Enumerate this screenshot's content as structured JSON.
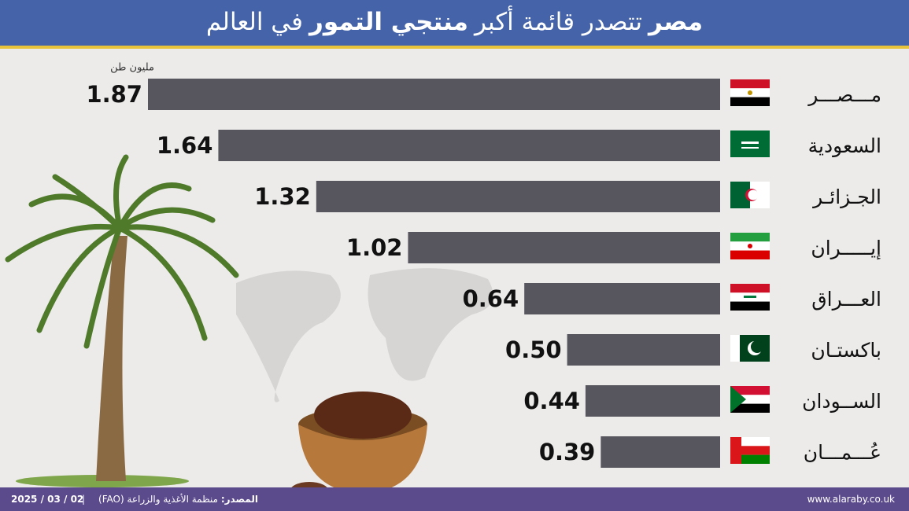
{
  "chart_data": {
    "type": "bar",
    "orientation": "horizontal",
    "title": [
      "مصر",
      "تتصدر قائمة أكبر",
      "منتجي التمور",
      "في العالم"
    ],
    "unit_label": "مليون طن",
    "categories": [
      "مـــصـــر",
      "السعودية",
      "الجـزائـر",
      "إيـــــران",
      "العـــراق",
      "باكستـان",
      "الســودان",
      "عُـــمـــان"
    ],
    "values": [
      1.87,
      1.64,
      1.32,
      1.02,
      0.64,
      0.5,
      0.44,
      0.39
    ],
    "value_labels": [
      "1.87",
      "1.64",
      "1.32",
      "1.02",
      "0.64",
      "0.50",
      "0.44",
      "0.39"
    ],
    "color": "#57555e"
  },
  "footer": {
    "date": "2025 / 03 / 02",
    "source_label": "المصدر:",
    "source": "منظمة الأغذية والزراعة (FAO)",
    "website": "www.alaraby.co.uk"
  }
}
